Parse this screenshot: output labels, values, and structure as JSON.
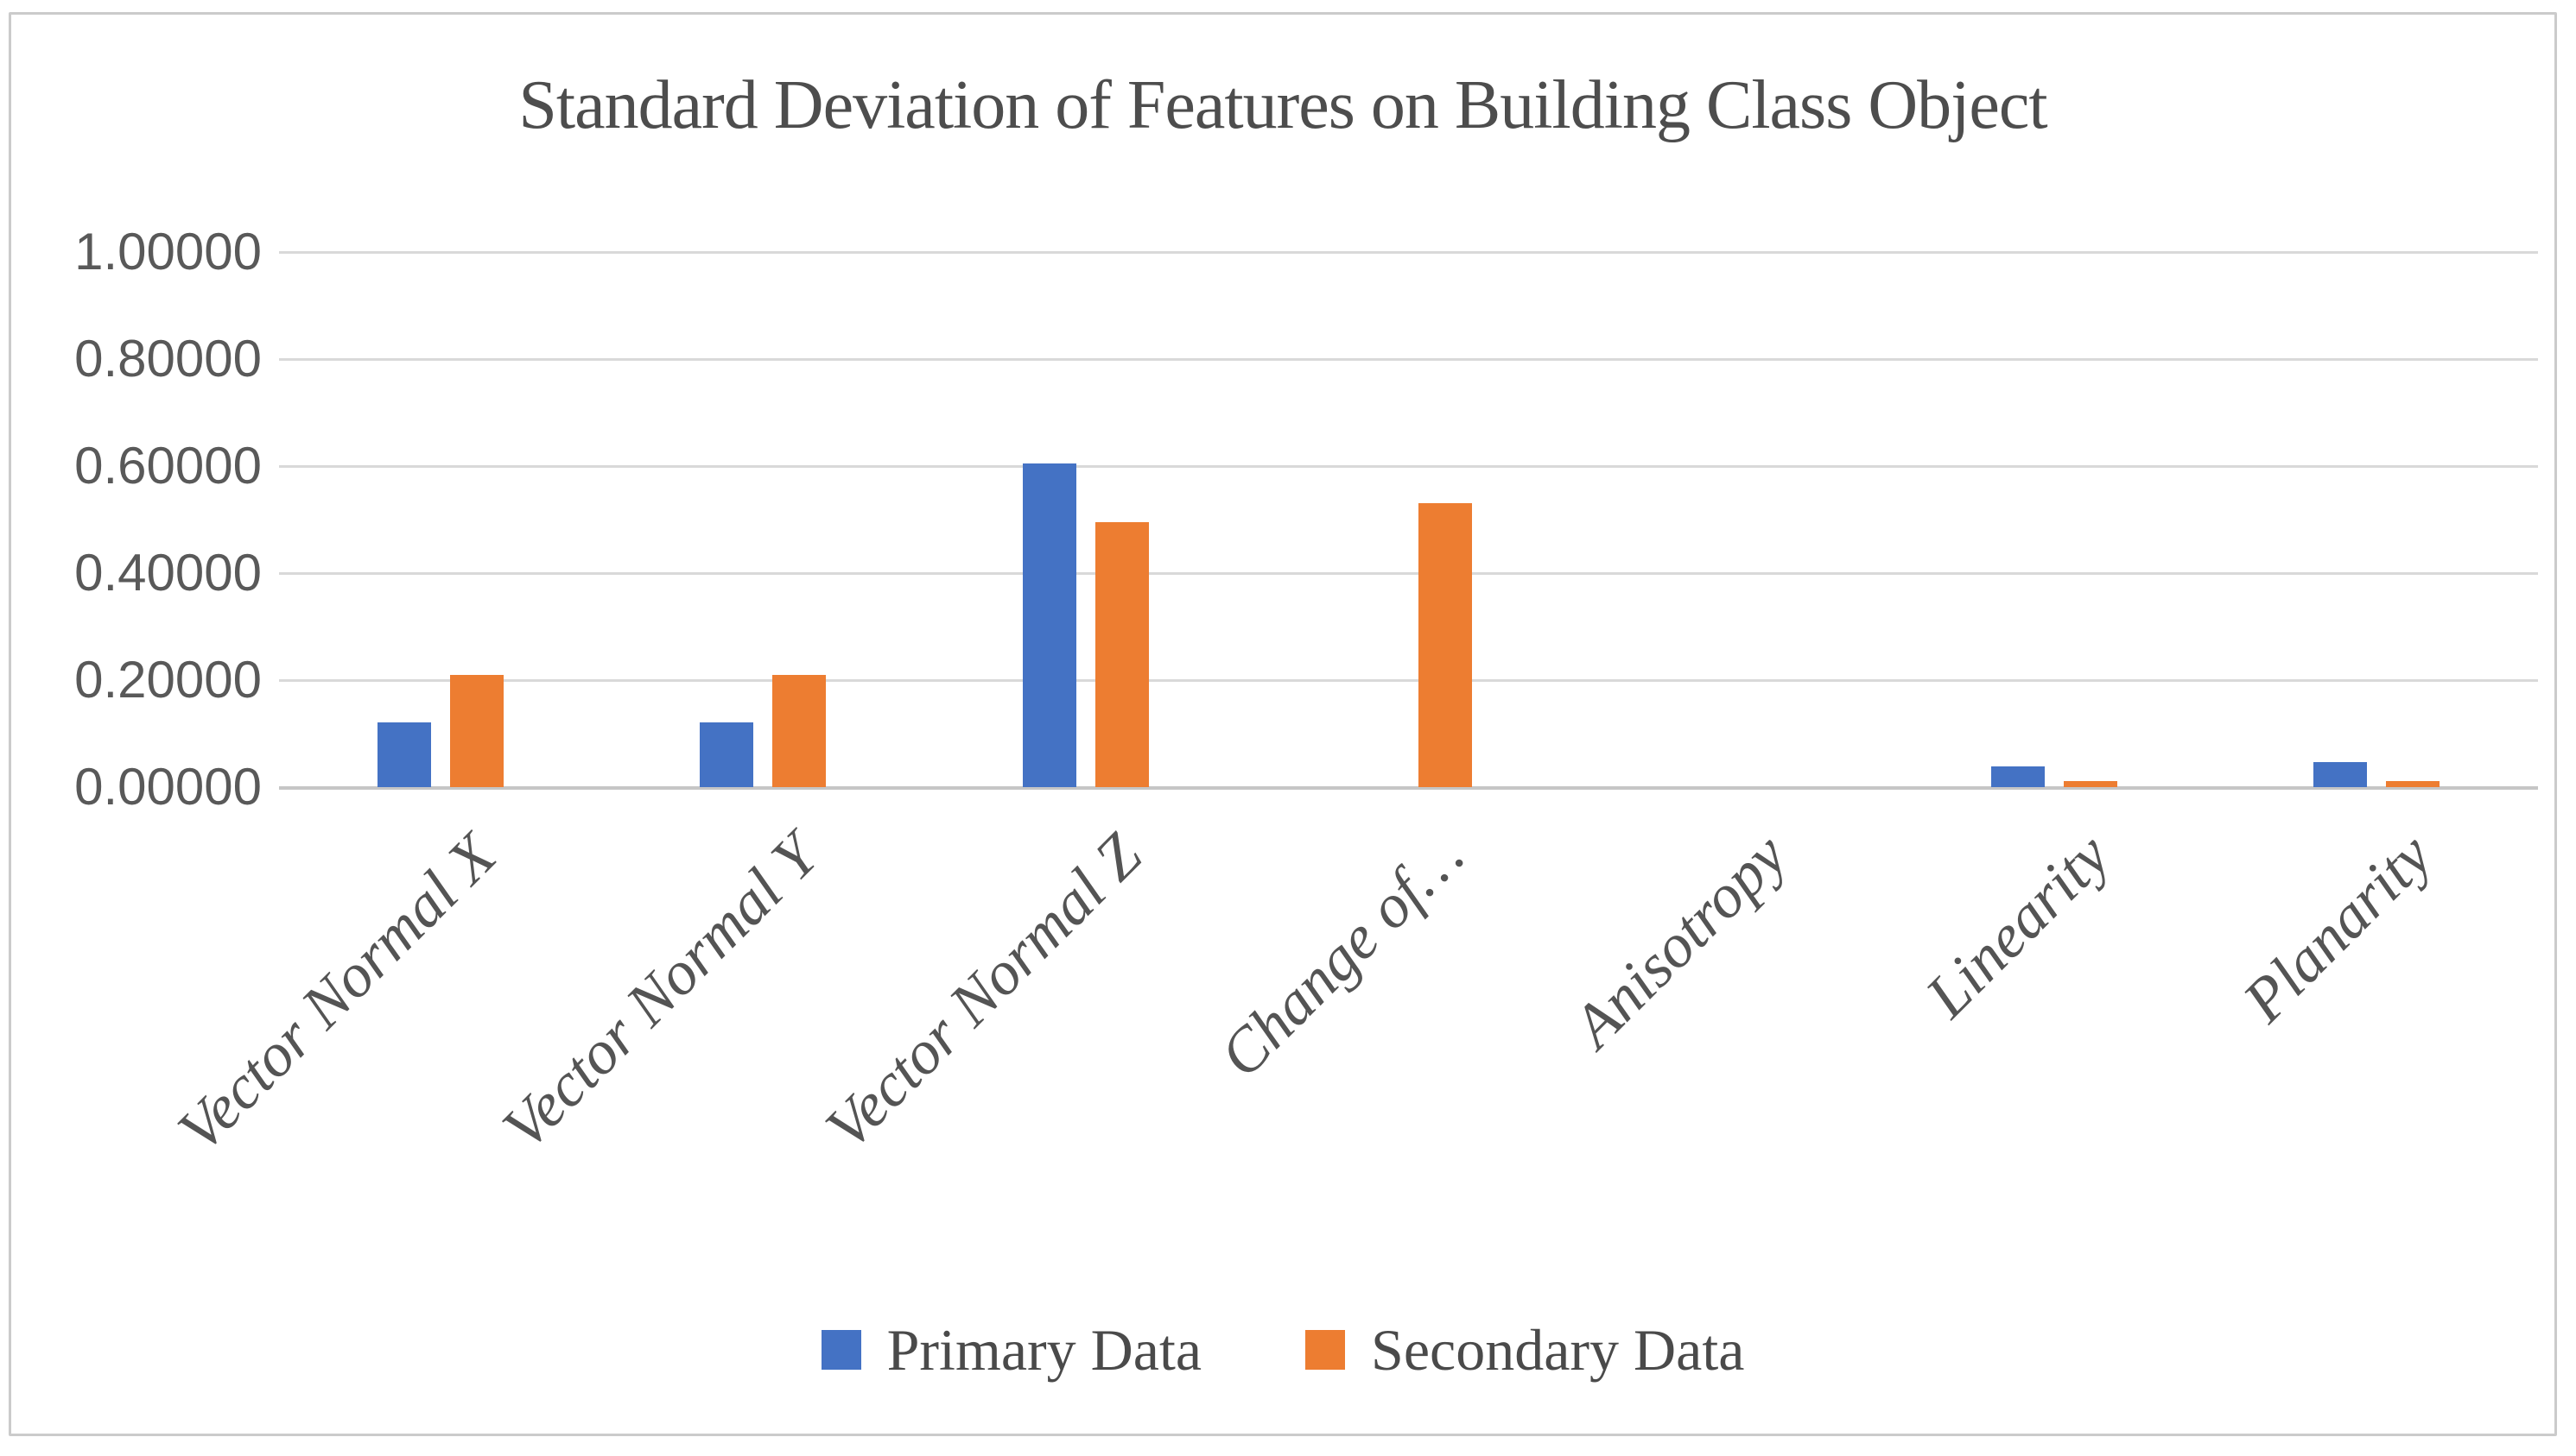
{
  "chart_data": {
    "type": "bar",
    "title": "Standard Deviation of Features on Building Class Object",
    "categories": [
      "Vector Normal X",
      "Vector Normal Y",
      "Vector Normal Z",
      "Change of…",
      "Anisotropy",
      "Linearity",
      "Planarity"
    ],
    "series": [
      {
        "name": "Primary Data",
        "color": "#4472C4",
        "values": [
          0.121,
          0.121,
          0.605,
          0.0,
          0.0,
          0.038,
          0.046
        ]
      },
      {
        "name": "Secondary Data",
        "color": "#ED7D31",
        "values": [
          0.21,
          0.21,
          0.495,
          0.53,
          0.0,
          0.012,
          0.012
        ]
      }
    ],
    "y_axis": {
      "min": 0,
      "max": 1,
      "step": 0.2,
      "tick_labels": [
        "0.00000",
        "0.20000",
        "0.40000",
        "0.60000",
        "0.80000",
        "1.00000"
      ]
    },
    "grid": true,
    "legend_position": "bottom",
    "colors": {
      "gridline": "#d9d9d9",
      "axis_text": "#595959",
      "title_text": "#4d4d4d",
      "frame_border": "#cbcbcb"
    }
  }
}
